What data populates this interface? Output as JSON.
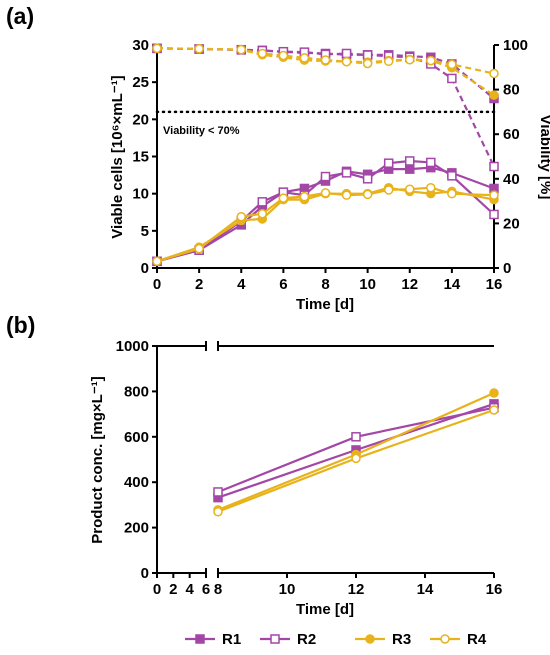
{
  "colors": {
    "purple": "#A347A7",
    "gold": "#E8B21B",
    "axis": "#000000"
  },
  "chart_data": [
    {
      "type": "line",
      "panel_label": "(a)",
      "xlabel": "Time [d]",
      "ylabel": "Viable cells [10⁶×mL⁻¹]",
      "y2label": "Viability [%]",
      "xlim": [
        0,
        16
      ],
      "ylim": [
        0,
        30
      ],
      "y2lim": [
        0,
        100
      ],
      "x_ticks": [
        0,
        2,
        4,
        6,
        8,
        10,
        12,
        14,
        16
      ],
      "y_ticks": [
        0,
        5,
        10,
        15,
        20,
        25,
        30
      ],
      "y2_ticks": [
        0,
        20,
        40,
        60,
        80,
        100
      ],
      "threshold": {
        "axis": "y2",
        "value": 70,
        "label": "Viability < 70%",
        "style": "dotted"
      },
      "grid": false,
      "series": [
        {
          "name": "R1",
          "color": "purple",
          "marker": "filled-square",
          "axis": "y",
          "x": [
            0,
            2,
            4,
            5,
            6,
            7,
            8,
            9,
            10,
            11,
            12,
            13,
            14,
            16
          ],
          "y": [
            0.9,
            2.4,
            5.8,
            8.3,
            10.2,
            10.7,
            11.7,
            13.0,
            12.6,
            13.3,
            13.3,
            13.5,
            12.8,
            10.7
          ]
        },
        {
          "name": "R2",
          "color": "purple",
          "marker": "open-square",
          "axis": "y",
          "x": [
            0,
            2,
            4,
            5,
            6,
            7,
            8,
            9,
            10,
            11,
            12,
            13,
            14,
            16
          ],
          "y": [
            0.9,
            2.4,
            6.3,
            8.9,
            10.2,
            9.8,
            12.3,
            12.8,
            12.0,
            14.1,
            14.4,
            14.2,
            12.4,
            7.2
          ]
        },
        {
          "name": "R3",
          "color": "gold",
          "marker": "filled-circle",
          "axis": "y",
          "x": [
            0,
            2,
            4,
            5,
            6,
            7,
            8,
            9,
            10,
            11,
            12,
            13,
            14,
            16
          ],
          "y": [
            0.9,
            2.8,
            6.4,
            6.6,
            9.2,
            9.2,
            10.0,
            10.0,
            10.0,
            10.8,
            10.3,
            10.0,
            10.3,
            9.2
          ]
        },
        {
          "name": "R4",
          "color": "gold",
          "marker": "open-circle",
          "axis": "y",
          "x": [
            0,
            2,
            4,
            5,
            6,
            7,
            8,
            9,
            10,
            11,
            12,
            13,
            14,
            16
          ],
          "y": [
            0.9,
            2.6,
            6.9,
            7.3,
            9.4,
            9.6,
            10.1,
            9.8,
            9.9,
            10.5,
            10.6,
            10.8,
            10.0,
            9.8
          ]
        },
        {
          "name": "R1",
          "color": "purple",
          "marker": "filled-square",
          "axis": "y2",
          "dashed": true,
          "x": [
            0,
            2,
            4,
            5,
            6,
            7,
            8,
            9,
            10,
            11,
            12,
            13,
            14,
            16
          ],
          "y": [
            98.5,
            98.2,
            97.9,
            97.6,
            96.9,
            96.5,
            96.2,
            95.6,
            95.6,
            95.6,
            95.0,
            94.5,
            91.5,
            76.0
          ]
        },
        {
          "name": "R2",
          "color": "purple",
          "marker": "open-square",
          "axis": "y2",
          "dashed": true,
          "x": [
            0,
            2,
            4,
            5,
            6,
            7,
            8,
            9,
            10,
            11,
            12,
            13,
            14,
            16
          ],
          "y": [
            98.5,
            98.2,
            97.8,
            97.5,
            97.0,
            96.8,
            95.8,
            96.2,
            95.5,
            95.0,
            94.5,
            91.5,
            85.0,
            45.5
          ]
        },
        {
          "name": "R3",
          "color": "gold",
          "marker": "filled-circle",
          "axis": "y2",
          "dashed": true,
          "x": [
            0,
            2,
            4,
            5,
            6,
            7,
            8,
            9,
            10,
            11,
            12,
            13,
            14,
            16
          ],
          "y": [
            98.5,
            98.3,
            97.9,
            95.6,
            94.5,
            93.2,
            92.8,
            92.6,
            92.3,
            93.0,
            93.5,
            93.0,
            89.8,
            77.5
          ]
        },
        {
          "name": "R4",
          "color": "gold",
          "marker": "open-circle",
          "axis": "y2",
          "dashed": true,
          "x": [
            0,
            2,
            4,
            5,
            6,
            7,
            8,
            9,
            10,
            11,
            12,
            13,
            14,
            16
          ],
          "y": [
            98.5,
            98.3,
            97.9,
            96.2,
            95.3,
            94.2,
            93.3,
            92.5,
            91.7,
            92.7,
            93.4,
            93.0,
            91.3,
            87.2
          ]
        }
      ]
    },
    {
      "type": "line",
      "panel_label": "(b)",
      "xlabel": "Time [d]",
      "ylabel": "Product conc. [mg×L⁻¹]",
      "x_break": {
        "left_ticks": [
          0,
          2,
          4,
          6
        ],
        "right_ticks": [
          8,
          10,
          12,
          14,
          16
        ],
        "left_range": [
          0,
          6
        ],
        "right_range": [
          8,
          16
        ]
      },
      "ylim": [
        0,
        1000
      ],
      "y_ticks": [
        0,
        200,
        400,
        600,
        800,
        1000
      ],
      "grid": false,
      "series": [
        {
          "name": "R1",
          "color": "purple",
          "marker": "filled-square",
          "x": [
            8,
            12,
            16
          ],
          "y": [
            332,
            542,
            745
          ]
        },
        {
          "name": "R2",
          "color": "purple",
          "marker": "open-square",
          "x": [
            8,
            12,
            16
          ],
          "y": [
            357,
            600,
            728
          ]
        },
        {
          "name": "R3",
          "color": "gold",
          "marker": "filled-circle",
          "x": [
            8,
            12,
            16
          ],
          "y": [
            278,
            522,
            793
          ]
        },
        {
          "name": "R4",
          "color": "gold",
          "marker": "open-circle",
          "x": [
            8,
            12,
            16
          ],
          "y": [
            270,
            505,
            718
          ]
        }
      ]
    }
  ],
  "legend": {
    "placement": "bottom",
    "items": [
      {
        "name": "R1",
        "color": "purple",
        "marker": "filled-square"
      },
      {
        "name": "R2",
        "color": "purple",
        "marker": "open-square"
      },
      {
        "name": "R3",
        "color": "gold",
        "marker": "filled-circle"
      },
      {
        "name": "R4",
        "color": "gold",
        "marker": "open-circle"
      }
    ]
  }
}
